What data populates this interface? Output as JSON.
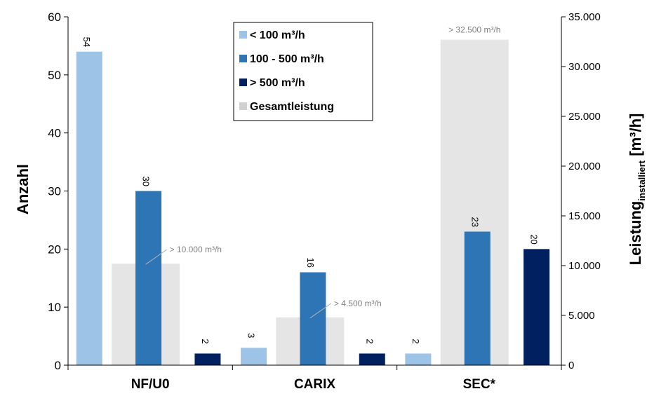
{
  "chart_data": {
    "type": "bar",
    "categories": [
      "NF/U0",
      "CARIX",
      "SEC*"
    ],
    "series": [
      {
        "name": "< 100 m³/h",
        "axis": "left",
        "color": "#9dc3e6",
        "values": [
          54,
          3,
          2
        ]
      },
      {
        "name": "100 - 500 m³/h",
        "axis": "left",
        "color": "#2e75b6",
        "values": [
          30,
          16,
          23
        ]
      },
      {
        "name": "> 500 m³/h",
        "axis": "left",
        "color": "#002060",
        "values": [
          2,
          2,
          20
        ]
      },
      {
        "name": "Gesamtleistung",
        "axis": "right",
        "color": "#d0d0d0",
        "values": [
          10200,
          4800,
          32700
        ]
      }
    ],
    "data_labels": [
      [
        "54",
        "3",
        "2"
      ],
      [
        "30",
        "16",
        "23"
      ],
      [
        "2",
        "2",
        "20"
      ]
    ],
    "annotations": [
      "> 10.000 m³/h",
      "> 4.500 m³/h",
      "> 32.500 m³/h"
    ],
    "ylabel": "Anzahl",
    "y2label_main": "Leistung",
    "y2label_sub": "installiert",
    "y2label_unit": " [m³/h]",
    "ylim": [
      0,
      60
    ],
    "y2lim": [
      0,
      35000
    ],
    "yticks": [
      "0",
      "10",
      "20",
      "30",
      "40",
      "50",
      "60"
    ],
    "y2ticks": [
      "0",
      "5.000",
      "10.000",
      "15.000",
      "20.000",
      "25.000",
      "30.000",
      "35.000"
    ],
    "legend_position": "top-center",
    "grid": false
  }
}
